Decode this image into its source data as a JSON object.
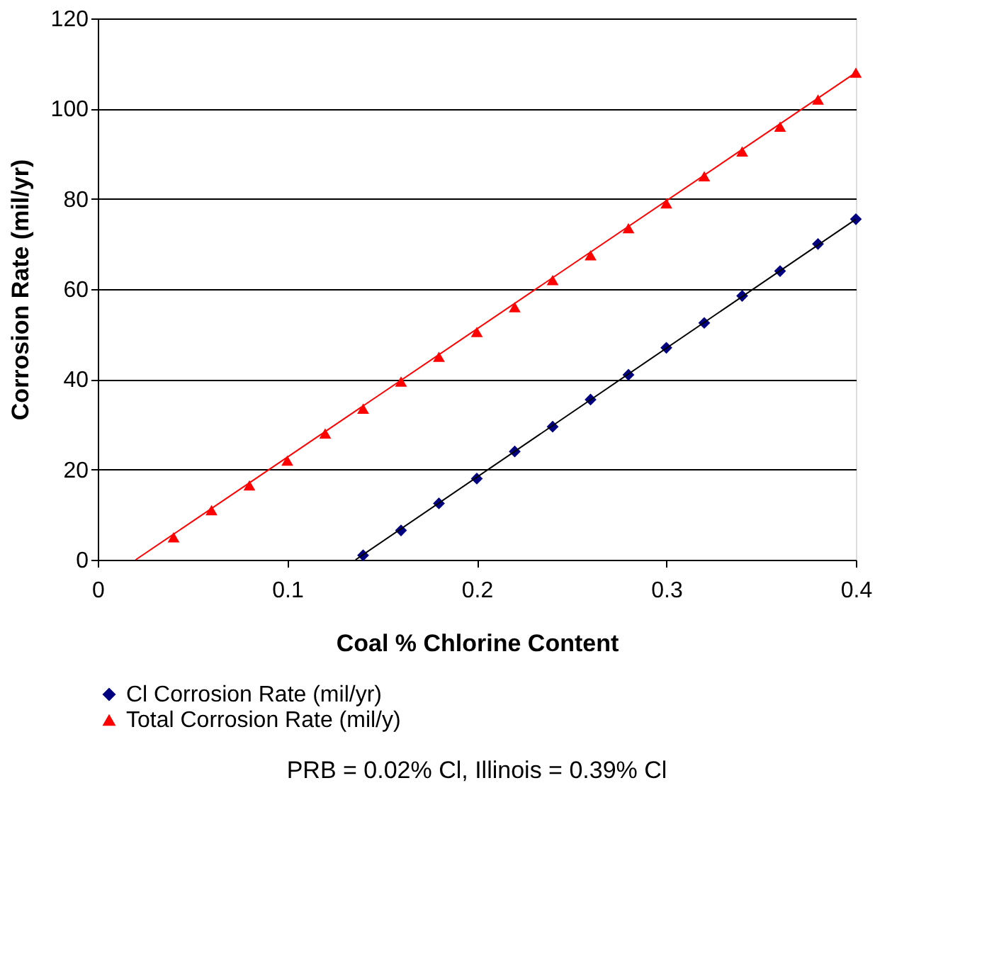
{
  "chart_data": {
    "type": "scatter",
    "xlabel": "Coal % Chlorine Content",
    "ylabel": "Corrosion Rate (mil/yr)",
    "xlim": [
      0,
      0.4
    ],
    "xticks": [
      0,
      0.1,
      0.2,
      0.3,
      0.4
    ],
    "ylim": [
      0,
      120
    ],
    "yticks": [
      0,
      20,
      40,
      60,
      80,
      100,
      120
    ],
    "grid": "y",
    "legend": "bottom",
    "series": [
      {
        "name": "Cl Corrosion Rate (mil/yr)",
        "marker": "diamond",
        "color": "#000080",
        "x": [
          0.14,
          0.16,
          0.18,
          0.2,
          0.22,
          0.24,
          0.26,
          0.28,
          0.3,
          0.32,
          0.34,
          0.36,
          0.38,
          0.4
        ],
        "values": [
          1,
          6.5,
          12.5,
          18,
          24,
          29.5,
          35.5,
          41,
          47,
          52.5,
          58.5,
          64,
          70,
          75.5
        ]
      },
      {
        "name": "Total Corrosion Rate (mil/y)",
        "marker": "triangle",
        "color": "#ff0000",
        "x": [
          0.04,
          0.06,
          0.08,
          0.1,
          0.12,
          0.14,
          0.16,
          0.18,
          0.2,
          0.22,
          0.24,
          0.26,
          0.28,
          0.3,
          0.32,
          0.34,
          0.36,
          0.38,
          0.4
        ],
        "values": [
          5,
          11,
          16.5,
          22,
          28,
          33.5,
          39.5,
          45,
          50.5,
          56,
          62,
          67.5,
          73.5,
          79,
          85,
          90.5,
          96,
          102,
          108
        ]
      },
      {
        "type": "line",
        "marker": "none",
        "color": "#ff0000",
        "x": [
          0.02,
          0.4
        ],
        "values": [
          0,
          108
        ]
      },
      {
        "type": "line",
        "marker": "none",
        "color": "#000000",
        "x": [
          0.136,
          0.4
        ],
        "values": [
          0,
          75.5
        ]
      }
    ],
    "annotations": [
      "PRB = 0.02% Cl, Illinois = 0.39% Cl"
    ]
  }
}
